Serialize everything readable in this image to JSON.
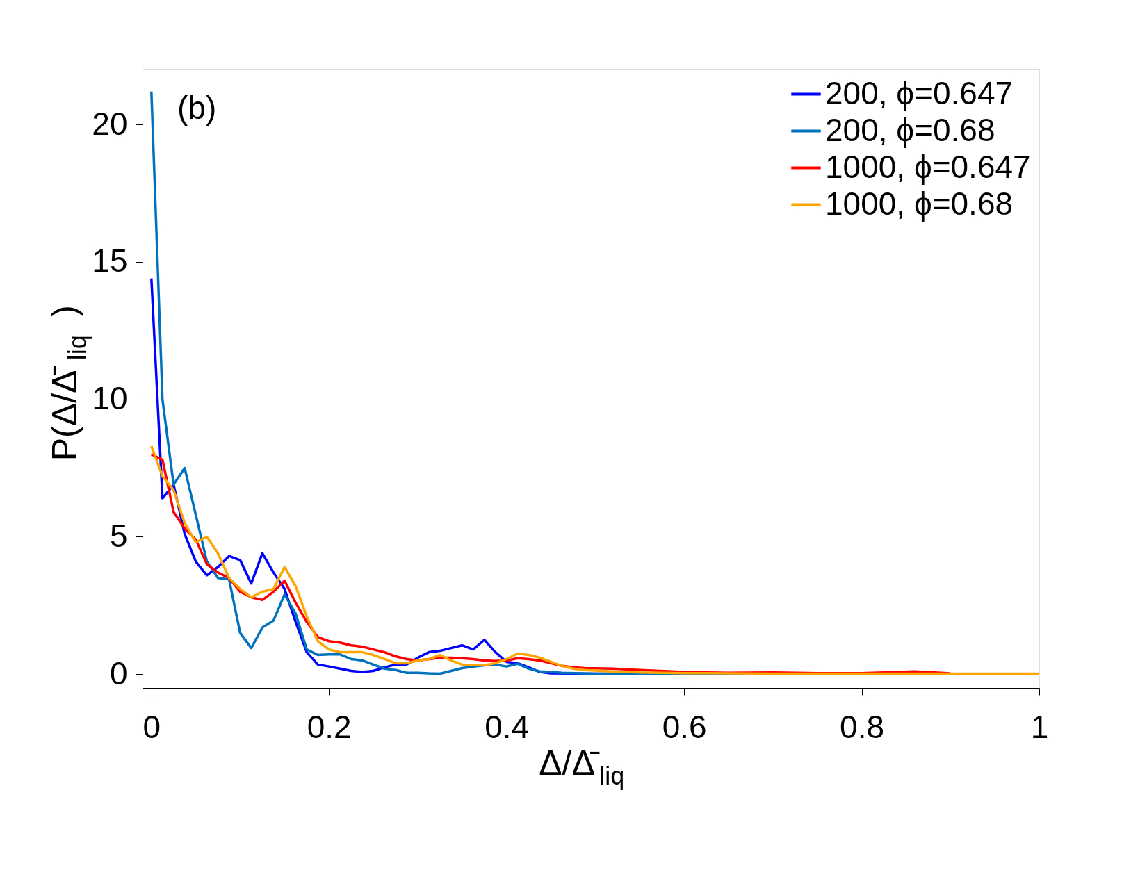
{
  "chart_data": {
    "type": "line",
    "xlabel": "Δ/Δ̄$_{liq}$",
    "ylabel": "P(Δ/Δ̄$_{liq}$)",
    "annotations": [
      "(b)"
    ],
    "xlim": [
      -0.01,
      1
    ],
    "xticks": [
      {
        "value": 0,
        "label": "0"
      },
      0.2,
      0.4,
      0.6,
      0.8,
      {
        "value": 1,
        "label": "1"
      }
    ],
    "ylim": [
      -0.5,
      22
    ],
    "yticks": [
      0,
      5,
      10,
      15,
      20
    ],
    "grid": false,
    "legend": "top right",
    "line_style": "solid",
    "marker": "none",
    "series": [
      {
        "name": "200, ϕ=0.647",
        "color": "#0000ff",
        "x": [
          0,
          0.0125,
          0.025,
          0.0375,
          0.05,
          0.0625,
          0.075,
          0.0875,
          0.1,
          0.1125,
          0.125,
          0.1375,
          0.15,
          0.1625,
          0.175,
          0.1875,
          0.2,
          0.2125,
          0.225,
          0.2375,
          0.25,
          0.2625,
          0.275,
          0.2875,
          0.3,
          0.3125,
          0.325,
          0.3375,
          0.35,
          0.3625,
          0.375,
          0.3875,
          0.4,
          0.4125,
          0.425,
          0.4375,
          0.45,
          0.5,
          0.6,
          1.0
        ],
        "values": [
          14.4,
          6.4,
          6.9,
          5.1,
          4.1,
          3.6,
          3.9,
          4.3,
          4.15,
          3.3,
          4.4,
          3.7,
          3.1,
          1.9,
          0.8,
          0.35,
          0.28,
          0.2,
          0.12,
          0.08,
          0.12,
          0.25,
          0.35,
          0.35,
          0.6,
          0.8,
          0.85,
          0.95,
          1.05,
          0.9,
          1.25,
          0.8,
          0.45,
          0.4,
          0.25,
          0.08,
          0.03,
          0.02,
          0.01,
          0.0
        ]
      },
      {
        "name": "200, ϕ=0.68",
        "color": "#0072bd",
        "x": [
          0,
          0.0125,
          0.025,
          0.0375,
          0.05,
          0.0625,
          0.075,
          0.0875,
          0.1,
          0.1125,
          0.125,
          0.1375,
          0.15,
          0.1625,
          0.175,
          0.1875,
          0.2,
          0.2125,
          0.225,
          0.2375,
          0.25,
          0.2625,
          0.275,
          0.2875,
          0.3,
          0.3125,
          0.325,
          0.3375,
          0.35,
          0.3625,
          0.375,
          0.3875,
          0.4,
          0.4125,
          0.425,
          0.4375,
          0.45,
          0.4625,
          0.5,
          0.6,
          1.0
        ],
        "values": [
          21.2,
          10.0,
          6.9,
          7.5,
          5.8,
          4.1,
          3.5,
          3.45,
          1.5,
          0.95,
          1.7,
          1.95,
          2.9,
          2.2,
          0.9,
          0.7,
          0.72,
          0.72,
          0.55,
          0.5,
          0.35,
          0.2,
          0.15,
          0.05,
          0.05,
          0.03,
          0.02,
          0.12,
          0.22,
          0.28,
          0.32,
          0.35,
          0.28,
          0.38,
          0.2,
          0.1,
          0.08,
          0.05,
          0.02,
          0.01,
          0.0
        ]
      },
      {
        "name": "1000, ϕ=0.647",
        "color": "#ff0000",
        "x": [
          0,
          0.0125,
          0.025,
          0.0375,
          0.05,
          0.0625,
          0.075,
          0.0875,
          0.1,
          0.1125,
          0.125,
          0.1375,
          0.15,
          0.1625,
          0.175,
          0.1875,
          0.2,
          0.2125,
          0.225,
          0.2375,
          0.25,
          0.2625,
          0.275,
          0.2875,
          0.3,
          0.3125,
          0.325,
          0.3375,
          0.35,
          0.3625,
          0.375,
          0.3875,
          0.4,
          0.4125,
          0.425,
          0.4375,
          0.45,
          0.4625,
          0.475,
          0.4875,
          0.52,
          0.55,
          0.6,
          0.65,
          0.7,
          0.75,
          0.8,
          0.86,
          0.9
        ],
        "values": [
          8.0,
          7.8,
          5.9,
          5.3,
          4.9,
          4.0,
          3.7,
          3.5,
          3.0,
          2.8,
          2.7,
          3.0,
          3.4,
          2.6,
          1.9,
          1.35,
          1.2,
          1.15,
          1.05,
          1.0,
          0.9,
          0.8,
          0.65,
          0.55,
          0.5,
          0.55,
          0.6,
          0.6,
          0.58,
          0.55,
          0.5,
          0.48,
          0.5,
          0.58,
          0.55,
          0.5,
          0.4,
          0.3,
          0.25,
          0.22,
          0.2,
          0.15,
          0.08,
          0.05,
          0.06,
          0.04,
          0.04,
          0.1,
          0.03
        ]
      },
      {
        "name": "1000, ϕ=0.68",
        "color": "#ffa500",
        "x": [
          0,
          0.0125,
          0.025,
          0.0375,
          0.05,
          0.0625,
          0.075,
          0.0875,
          0.1,
          0.1125,
          0.125,
          0.1375,
          0.15,
          0.1625,
          0.175,
          0.1875,
          0.2,
          0.2125,
          0.225,
          0.2375,
          0.25,
          0.2625,
          0.275,
          0.2875,
          0.3,
          0.3125,
          0.325,
          0.3375,
          0.35,
          0.3625,
          0.375,
          0.3875,
          0.4,
          0.4125,
          0.425,
          0.4375,
          0.45,
          0.4625,
          0.475,
          0.4875,
          0.52,
          0.55,
          0.6,
          0.7,
          0.8,
          1.0
        ],
        "values": [
          8.3,
          7.2,
          6.7,
          5.5,
          4.8,
          5.0,
          4.4,
          3.5,
          3.1,
          2.8,
          3.0,
          3.1,
          3.9,
          3.2,
          2.1,
          1.2,
          0.9,
          0.8,
          0.8,
          0.8,
          0.7,
          0.55,
          0.4,
          0.4,
          0.5,
          0.55,
          0.7,
          0.5,
          0.35,
          0.33,
          0.33,
          0.4,
          0.55,
          0.75,
          0.7,
          0.6,
          0.45,
          0.3,
          0.2,
          0.15,
          0.1,
          0.06,
          0.04,
          0.02,
          0.02,
          0.02
        ]
      }
    ]
  }
}
